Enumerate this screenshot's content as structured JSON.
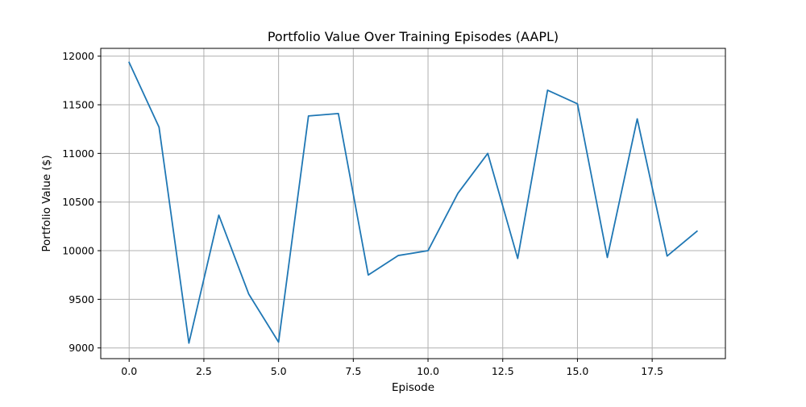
{
  "chart_data": {
    "type": "line",
    "title": "Portfolio Value Over Training Episodes (AAPL)",
    "xlabel": "Episode",
    "ylabel": "Portfolio Value ($)",
    "xlim": [
      -0.95,
      19.95
    ],
    "ylim": [
      8890,
      12080
    ],
    "xticks": [
      0.0,
      2.5,
      5.0,
      7.5,
      10.0,
      12.5,
      15.0,
      17.5
    ],
    "xtick_labels": [
      "0.0",
      "2.5",
      "5.0",
      "7.5",
      "10.0",
      "12.5",
      "15.0",
      "17.5"
    ],
    "yticks": [
      9000,
      9500,
      10000,
      10500,
      11000,
      11500,
      12000
    ],
    "ytick_labels": [
      "9000",
      "9500",
      "10000",
      "10500",
      "11000",
      "11500",
      "12000"
    ],
    "grid": true,
    "series": [
      {
        "color": "#1f77b4",
        "x": [
          0,
          1,
          2,
          3,
          4,
          5,
          6,
          7,
          8,
          9,
          10,
          11,
          12,
          13,
          14,
          15,
          16,
          17,
          18,
          19
        ],
        "y": [
          11935,
          11270,
          9050,
          10365,
          9555,
          9060,
          11385,
          11410,
          9750,
          9950,
          10000,
          10590,
          11000,
          9920,
          11650,
          11510,
          9930,
          11355,
          9945,
          10200
        ]
      }
    ]
  }
}
